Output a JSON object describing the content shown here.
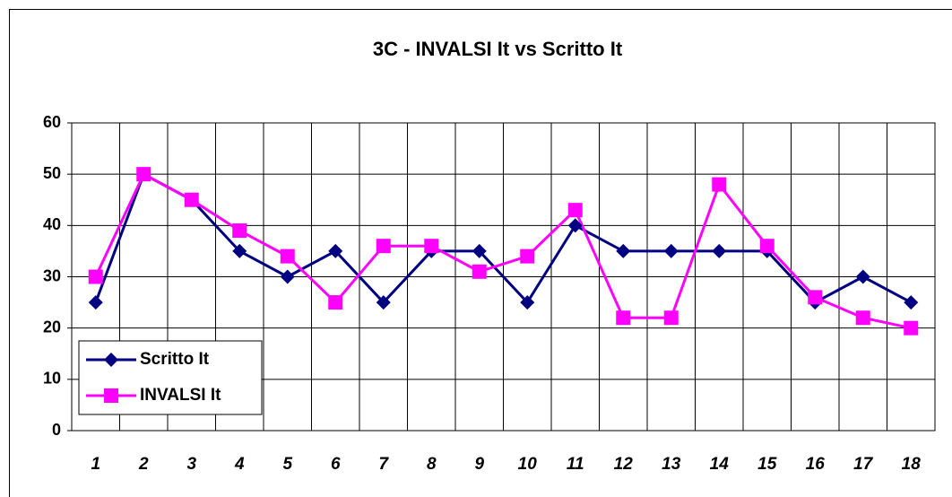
{
  "chart_data": {
    "type": "line",
    "title": "3C - INVALSI It vs Scritto It",
    "categories": [
      "1",
      "2",
      "3",
      "4",
      "5",
      "6",
      "7",
      "8",
      "9",
      "10",
      "11",
      "12",
      "13",
      "14",
      "15",
      "16",
      "17",
      "18"
    ],
    "series": [
      {
        "name": "Scritto It",
        "color": "#000080",
        "marker": "diamond",
        "values": [
          25,
          50,
          45,
          35,
          30,
          35,
          25,
          35,
          35,
          25,
          40,
          35,
          35,
          35,
          35,
          25,
          30,
          25
        ]
      },
      {
        "name": "INVALSI It",
        "color": "#ff00ff",
        "marker": "square",
        "values": [
          30,
          50,
          45,
          39,
          34,
          25,
          36,
          36,
          31,
          34,
          43,
          22,
          22,
          48,
          36,
          26,
          22,
          20
        ]
      }
    ],
    "ylim": [
      0,
      60
    ],
    "yticks": [
      0,
      10,
      20,
      30,
      40,
      50,
      60
    ],
    "grid": true,
    "legend": "lower left"
  }
}
